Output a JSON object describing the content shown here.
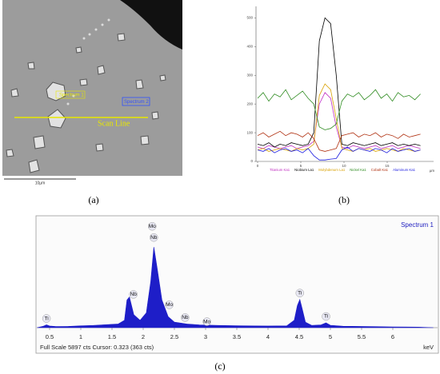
{
  "panel_a": {
    "caption": "(a)",
    "labels": [
      "Spectrum 1",
      "Spectrum 2"
    ],
    "scan_line": "Scan Line",
    "scale_bar": "10µm"
  },
  "chart_data": [
    {
      "type": "line",
      "caption": "(b)",
      "x_unit": "µm",
      "x": [
        0,
        0.65,
        1.3,
        1.95,
        2.6,
        3.25,
        3.9,
        4.55,
        5.2,
        5.85,
        6.5,
        7.15,
        7.8,
        8.45,
        9.1,
        9.75,
        10.4,
        11.05,
        11.7,
        12.35,
        13,
        13.65,
        14.3,
        14.95,
        15.6,
        16.25,
        16.9,
        17.55,
        18.2,
        18.85
      ],
      "series": [
        {
          "name": "Titanium Ka1",
          "color": "#c030c0",
          "values": [
            50,
            45,
            55,
            50,
            45,
            50,
            55,
            45,
            50,
            55,
            70,
            200,
            240,
            220,
            120,
            50,
            45,
            55,
            50,
            45,
            50,
            55,
            45,
            50,
            55,
            45,
            50,
            55,
            50,
            45
          ]
        },
        {
          "name": "Niobium La1",
          "color": "#000000",
          "values": [
            60,
            55,
            65,
            50,
            60,
            55,
            65,
            60,
            55,
            60,
            100,
            420,
            500,
            480,
            300,
            60,
            55,
            65,
            60,
            55,
            60,
            65,
            55,
            60,
            65,
            55,
            60,
            55,
            60,
            55
          ]
        },
        {
          "name": "Molybdenum La1",
          "color": "#d8a000",
          "values": [
            40,
            45,
            35,
            40,
            45,
            40,
            35,
            45,
            40,
            45,
            60,
            230,
            270,
            250,
            150,
            45,
            40,
            35,
            45,
            40,
            45,
            35,
            40,
            45,
            40,
            35,
            45,
            40,
            35,
            40
          ]
        },
        {
          "name": "Nickel Ka1",
          "color": "#2e8b20",
          "values": [
            220,
            240,
            210,
            235,
            225,
            250,
            215,
            230,
            245,
            220,
            200,
            120,
            110,
            115,
            130,
            210,
            235,
            225,
            240,
            215,
            230,
            250,
            220,
            235,
            210,
            240,
            225,
            230,
            215,
            235
          ]
        },
        {
          "name": "Cobalt Ka1",
          "color": "#b03010",
          "values": [
            90,
            100,
            85,
            95,
            105,
            90,
            100,
            95,
            85,
            100,
            80,
            40,
            35,
            40,
            45,
            90,
            95,
            100,
            85,
            95,
            90,
            100,
            85,
            95,
            90,
            80,
            95,
            85,
            90,
            95
          ]
        },
        {
          "name": "Aluminum Ka1",
          "color": "#1a1ae0",
          "values": [
            40,
            35,
            45,
            30,
            40,
            45,
            35,
            40,
            30,
            45,
            20,
            5,
            5,
            8,
            10,
            40,
            50,
            35,
            45,
            40,
            35,
            45,
            40,
            30,
            45,
            35,
            40,
            45,
            35,
            40
          ]
        }
      ],
      "xlim": [
        0,
        20
      ],
      "ylim": [
        0,
        540
      ],
      "xticks": [
        0,
        5,
        10,
        15
      ],
      "yticks": [
        0,
        100,
        200,
        300,
        400,
        500
      ]
    },
    {
      "type": "area",
      "caption": "(c)",
      "title": "Spectrum 1",
      "x_label": "keV",
      "footer": "Full Scale 5897 cts Cursor: 0.323  (363 cts)",
      "color": "#1e1ec8",
      "x": [
        0.3,
        0.4,
        0.45,
        0.5,
        0.6,
        0.8,
        1.0,
        1.2,
        1.4,
        1.6,
        1.7,
        1.74,
        1.78,
        1.85,
        1.95,
        2.05,
        2.12,
        2.17,
        2.22,
        2.3,
        2.4,
        2.5,
        2.7,
        2.9,
        3.2,
        3.6,
        4.0,
        4.3,
        4.42,
        4.47,
        4.51,
        4.55,
        4.6,
        4.7,
        4.85,
        4.93,
        5.0,
        5.2,
        5.6,
        6.0,
        6.4,
        6.65
      ],
      "values": [
        0,
        80,
        150,
        90,
        60,
        70,
        100,
        120,
        160,
        200,
        400,
        1500,
        1660,
        700,
        400,
        800,
        2500,
        4370,
        3300,
        1500,
        600,
        300,
        200,
        150,
        120,
        100,
        90,
        100,
        400,
        1200,
        1530,
        1000,
        300,
        120,
        150,
        260,
        130,
        80,
        60,
        40,
        30,
        0
      ],
      "xlim": [
        0.3,
        6.65
      ],
      "ylim": [
        0,
        5897
      ],
      "xticks": [
        0.5,
        1,
        1.5,
        2,
        2.5,
        3,
        3.5,
        4,
        4.5,
        5,
        5.5,
        6
      ],
      "annotations": [
        {
          "text": "Ti",
          "x": 0.45
        },
        {
          "text": "Nb",
          "x": 1.74
        },
        {
          "text": "Mo",
          "x": 2.17
        },
        {
          "text": "Nb",
          "x": 2.17
        },
        {
          "text": "Mo",
          "x": 2.29
        },
        {
          "text": "Nb",
          "x": 2.62
        },
        {
          "text": "Mo",
          "x": 2.79
        },
        {
          "text": "Ti",
          "x": 4.51
        },
        {
          "text": "Ti",
          "x": 4.93
        }
      ]
    }
  ]
}
